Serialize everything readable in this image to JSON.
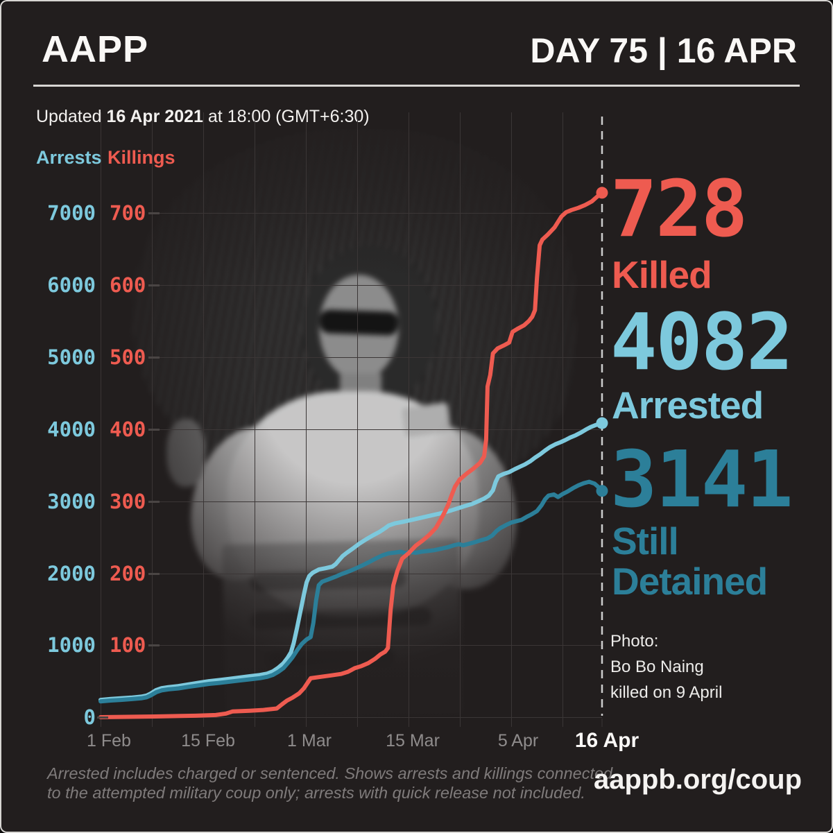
{
  "header": {
    "logo": "AAPP",
    "day_label": "DAY 75 | 16 APR"
  },
  "updated": {
    "prefix": "Updated ",
    "date": "16 Apr 2021",
    "suffix": " at 18:00 (GMT+6:30)"
  },
  "legend": {
    "arrests": "Arrests",
    "killings": "Killings"
  },
  "stats": [
    {
      "key": "killed",
      "value": "728",
      "label_lines": [
        "Killed"
      ],
      "color": "#ee5b50"
    },
    {
      "key": "arrested",
      "value": "4082",
      "label_lines": [
        "Arrested"
      ],
      "color": "#7dc9dd"
    },
    {
      "key": "still-detained",
      "value": "3141",
      "label_lines": [
        "Still",
        "Detained"
      ],
      "color": "#2c7f99"
    }
  ],
  "photo_caption": {
    "line1": "Photo:",
    "line2": "Bo Bo Naing",
    "line3": "killed on 9 April"
  },
  "footer": {
    "disclaimer_line1": "Arrested includes charged or sentenced. Shows arrests and killings connected",
    "disclaimer_line2": "to the attempted military coup only; arrests with quick release not included.",
    "url": "aappb.org/coup"
  },
  "chart_data": {
    "type": "line",
    "title": "Arrests and killings since 1 Feb 2021 coup, cumulative",
    "x_axis": {
      "labels": [
        "1 Feb",
        "15 Feb",
        "1 Mar",
        "15 Mar",
        "5 Apr",
        "16 Apr"
      ],
      "grid": true
    },
    "arrests_axis": {
      "label": "Arrests",
      "color": "#7dc9dd",
      "range": [
        0,
        7000
      ],
      "ticks": [
        "7000",
        "6000",
        "5000",
        "4000",
        "3000",
        "2000",
        "1000",
        "0"
      ]
    },
    "killings_axis": {
      "label": "Killings",
      "color": "#ee5b50",
      "range": [
        0,
        700
      ],
      "ticks": [
        "700",
        "600",
        "500",
        "400",
        "300",
        "200",
        "100"
      ]
    },
    "series": [
      {
        "name": "Arrests",
        "axis": "arrests",
        "color": "#7dc9dd",
        "end_value": 4082,
        "points": [
          [
            0,
            240
          ],
          [
            1.5,
            252
          ],
          [
            3,
            262
          ],
          [
            4.5,
            272
          ],
          [
            6,
            285
          ],
          [
            6.8,
            300
          ],
          [
            7.4,
            328
          ],
          [
            8.2,
            376
          ],
          [
            9,
            402
          ],
          [
            10,
            417
          ],
          [
            11.5,
            432
          ],
          [
            13,
            455
          ],
          [
            14.5,
            478
          ],
          [
            16,
            500
          ],
          [
            17.5,
            515
          ],
          [
            19,
            532
          ],
          [
            20.5,
            550
          ],
          [
            22,
            568
          ],
          [
            23.5,
            585
          ],
          [
            24.6,
            605
          ],
          [
            25.4,
            635
          ],
          [
            26.2,
            685
          ],
          [
            27,
            750
          ],
          [
            27.6,
            825
          ],
          [
            28.1,
            900
          ],
          [
            28.5,
            1030
          ],
          [
            29,
            1240
          ],
          [
            29.5,
            1470
          ],
          [
            30,
            1700
          ],
          [
            30.4,
            1870
          ],
          [
            30.8,
            1960
          ],
          [
            31.3,
            2005
          ],
          [
            32.2,
            2050
          ],
          [
            33.2,
            2068
          ],
          [
            34.2,
            2090
          ],
          [
            34.7,
            2125
          ],
          [
            35.2,
            2180
          ],
          [
            35.7,
            2235
          ],
          [
            36.3,
            2280
          ],
          [
            37.2,
            2340
          ],
          [
            38.2,
            2410
          ],
          [
            39.2,
            2470
          ],
          [
            40.2,
            2525
          ],
          [
            41.2,
            2575
          ],
          [
            42,
            2625
          ],
          [
            42.5,
            2660
          ],
          [
            43.5,
            2692
          ],
          [
            44.8,
            2715
          ],
          [
            46.2,
            2745
          ],
          [
            47.6,
            2775
          ],
          [
            49,
            2805
          ],
          [
            50.4,
            2835
          ],
          [
            51.8,
            2872
          ],
          [
            52.8,
            2902
          ],
          [
            53.8,
            2932
          ],
          [
            54.8,
            2960
          ],
          [
            55.8,
            3000
          ],
          [
            56.6,
            3035
          ],
          [
            57.3,
            3075
          ],
          [
            57.9,
            3150
          ],
          [
            58.3,
            3265
          ],
          [
            58.7,
            3343
          ],
          [
            59.5,
            3378
          ],
          [
            60.3,
            3402
          ],
          [
            61.1,
            3442
          ],
          [
            61.9,
            3478
          ],
          [
            62.6,
            3508
          ],
          [
            63.4,
            3552
          ],
          [
            64.1,
            3602
          ],
          [
            64.9,
            3652
          ],
          [
            65.6,
            3702
          ],
          [
            66.3,
            3748
          ],
          [
            67.1,
            3788
          ],
          [
            67.9,
            3818
          ],
          [
            68.6,
            3848
          ],
          [
            69.3,
            3882
          ],
          [
            70.1,
            3913
          ],
          [
            70.9,
            3952
          ],
          [
            71.6,
            3992
          ],
          [
            72.3,
            4027
          ],
          [
            73.1,
            4057
          ],
          [
            74,
            4082
          ]
        ]
      },
      {
        "name": "Still Detained",
        "axis": "arrests",
        "color": "#2c7f99",
        "end_value": 3141,
        "points": [
          [
            0,
            220
          ],
          [
            1.5,
            231
          ],
          [
            3,
            240
          ],
          [
            4.5,
            250
          ],
          [
            6,
            262
          ],
          [
            6.8,
            276
          ],
          [
            7.4,
            302
          ],
          [
            8.2,
            346
          ],
          [
            9,
            372
          ],
          [
            10,
            386
          ],
          [
            11.5,
            400
          ],
          [
            13,
            422
          ],
          [
            14.5,
            442
          ],
          [
            16,
            462
          ],
          [
            17.5,
            476
          ],
          [
            19,
            492
          ],
          [
            20.5,
            508
          ],
          [
            22,
            525
          ],
          [
            23.5,
            541
          ],
          [
            24.6,
            560
          ],
          [
            25.4,
            585
          ],
          [
            26.2,
            628
          ],
          [
            27,
            682
          ],
          [
            27.7,
            758
          ],
          [
            28.3,
            828
          ],
          [
            29,
            928
          ],
          [
            29.7,
            1018
          ],
          [
            30.4,
            1078
          ],
          [
            31,
            1112
          ],
          [
            31.4,
            1310
          ],
          [
            31.8,
            1620
          ],
          [
            32.2,
            1832
          ],
          [
            32.7,
            1880
          ],
          [
            33.6,
            1912
          ],
          [
            34.6,
            1948
          ],
          [
            35.6,
            1988
          ],
          [
            36.6,
            2022
          ],
          [
            37.6,
            2062
          ],
          [
            38.6,
            2106
          ],
          [
            39.6,
            2152
          ],
          [
            40.6,
            2202
          ],
          [
            41.6,
            2246
          ],
          [
            42.5,
            2274
          ],
          [
            43.5,
            2286
          ],
          [
            44.3,
            2296
          ],
          [
            45,
            2276
          ],
          [
            45.8,
            2292
          ],
          [
            46.5,
            2282
          ],
          [
            47.3,
            2296
          ],
          [
            48.2,
            2306
          ],
          [
            49.2,
            2318
          ],
          [
            50.2,
            2338
          ],
          [
            51.2,
            2358
          ],
          [
            52.2,
            2388
          ],
          [
            52.9,
            2402
          ],
          [
            53.5,
            2386
          ],
          [
            54.3,
            2406
          ],
          [
            55.2,
            2428
          ],
          [
            56.2,
            2458
          ],
          [
            57.1,
            2482
          ],
          [
            57.8,
            2522
          ],
          [
            58.4,
            2582
          ],
          [
            59,
            2626
          ],
          [
            59.8,
            2666
          ],
          [
            60.6,
            2702
          ],
          [
            61.4,
            2722
          ],
          [
            62.1,
            2738
          ],
          [
            62.9,
            2782
          ],
          [
            63.6,
            2815
          ],
          [
            64.4,
            2862
          ],
          [
            65.1,
            2945
          ],
          [
            65.6,
            3025
          ],
          [
            66.1,
            3075
          ],
          [
            66.9,
            3092
          ],
          [
            67.5,
            3056
          ],
          [
            68.1,
            3094
          ],
          [
            68.9,
            3132
          ],
          [
            69.7,
            3178
          ],
          [
            70.5,
            3218
          ],
          [
            71.3,
            3248
          ],
          [
            72.1,
            3268
          ],
          [
            72.9,
            3242
          ],
          [
            73.5,
            3192
          ],
          [
            74,
            3141
          ]
        ]
      },
      {
        "name": "Killings",
        "axis": "killings",
        "color": "#ee5b50",
        "end_value": 728,
        "points": [
          [
            0,
            0
          ],
          [
            8,
            1
          ],
          [
            14,
            2
          ],
          [
            17,
            3
          ],
          [
            18.5,
            5
          ],
          [
            19.5,
            8
          ],
          [
            22,
            9
          ],
          [
            24,
            10
          ],
          [
            26,
            12
          ],
          [
            26.8,
            18
          ],
          [
            27.5,
            23
          ],
          [
            28.3,
            27
          ],
          [
            29.3,
            33
          ],
          [
            30,
            40
          ],
          [
            30.5,
            47
          ],
          [
            31,
            54
          ],
          [
            32.5,
            56
          ],
          [
            34,
            58
          ],
          [
            35.5,
            60
          ],
          [
            36.5,
            63
          ],
          [
            37.5,
            68
          ],
          [
            38.5,
            71
          ],
          [
            39.5,
            75
          ],
          [
            40.5,
            81
          ],
          [
            41.3,
            87
          ],
          [
            42,
            91
          ],
          [
            42.4,
            96
          ],
          [
            42.8,
            149
          ],
          [
            43.2,
            183
          ],
          [
            43.8,
            203
          ],
          [
            44.5,
            220
          ],
          [
            45.5,
            228
          ],
          [
            46.5,
            238
          ],
          [
            47.5,
            245
          ],
          [
            48.5,
            253
          ],
          [
            49.5,
            263
          ],
          [
            50.3,
            276
          ],
          [
            50.8,
            285
          ],
          [
            51.3,
            295
          ],
          [
            51.8,
            308
          ],
          [
            52.3,
            320
          ],
          [
            53,
            330
          ],
          [
            54,
            338
          ],
          [
            55,
            345
          ],
          [
            56,
            353
          ],
          [
            56.6,
            362
          ],
          [
            56.9,
            385
          ],
          [
            57.1,
            459
          ],
          [
            57.5,
            475
          ],
          [
            57.9,
            505
          ],
          [
            58.6,
            512
          ],
          [
            59.5,
            516
          ],
          [
            60.3,
            520
          ],
          [
            60.8,
            535
          ],
          [
            61.5,
            539
          ],
          [
            62.5,
            544
          ],
          [
            63.2,
            550
          ],
          [
            63.7,
            556
          ],
          [
            64.1,
            565
          ],
          [
            64.4,
            610
          ],
          [
            64.8,
            655
          ],
          [
            65.2,
            663
          ],
          [
            66,
            670
          ],
          [
            67,
            680
          ],
          [
            68,
            695
          ],
          [
            68.7,
            701
          ],
          [
            69.5,
            704
          ],
          [
            70.5,
            707
          ],
          [
            71.5,
            711
          ],
          [
            72.5,
            716
          ],
          [
            73.2,
            722
          ],
          [
            74,
            728
          ]
        ]
      }
    ],
    "annotations": {
      "current_day_line": "16 Apr"
    }
  }
}
